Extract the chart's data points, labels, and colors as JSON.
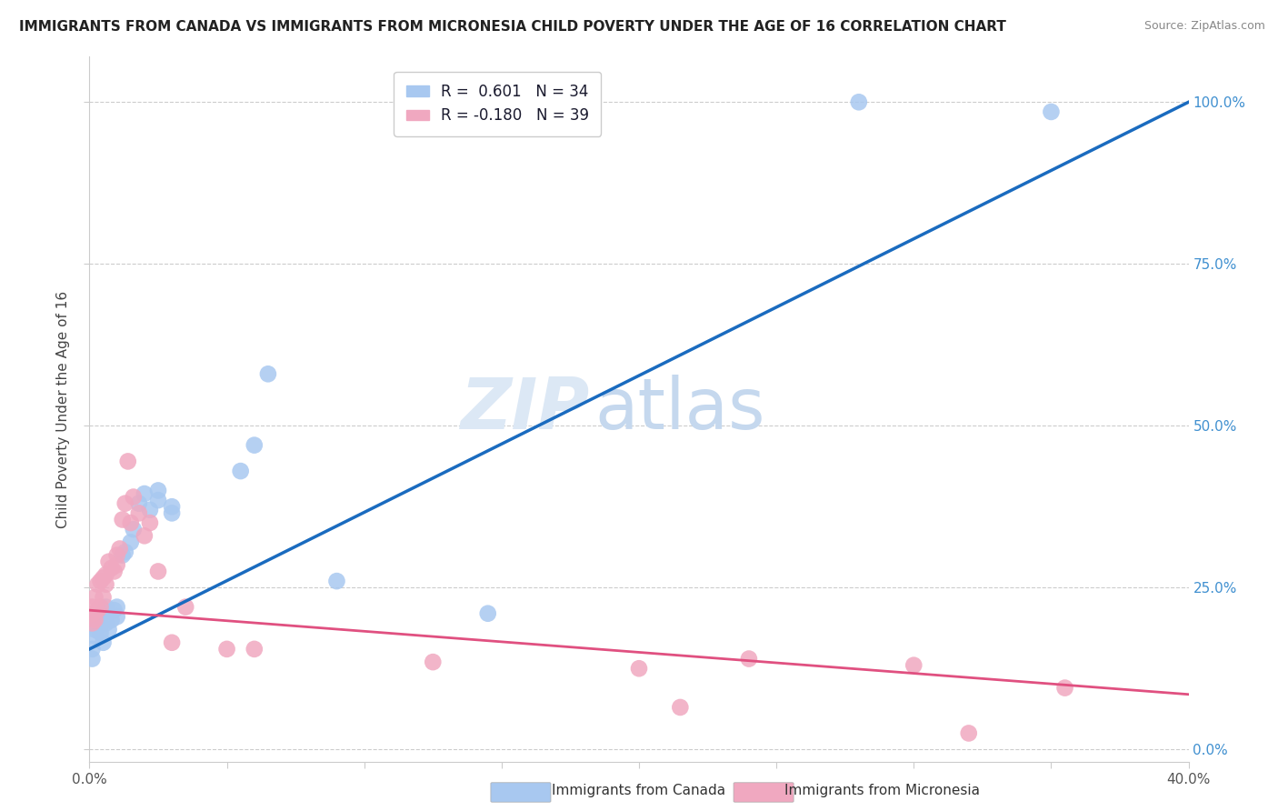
{
  "title": "IMMIGRANTS FROM CANADA VS IMMIGRANTS FROM MICRONESIA CHILD POVERTY UNDER THE AGE OF 16 CORRELATION CHART",
  "source": "Source: ZipAtlas.com",
  "ylabel": "Child Poverty Under the Age of 16",
  "xlabel_canada": "Immigrants from Canada",
  "xlabel_micronesia": "Immigrants from Micronesia",
  "x_min": 0.0,
  "x_max": 0.4,
  "y_min": -0.02,
  "y_max": 1.07,
  "canada_color": "#a8c8f0",
  "micronesia_color": "#f0a8c0",
  "canada_line_color": "#1a6bbf",
  "micronesia_line_color": "#e05080",
  "watermark_zip": "ZIP",
  "watermark_atlas": "atlas",
  "canada_x": [
    0.001,
    0.001,
    0.002,
    0.002,
    0.003,
    0.003,
    0.004,
    0.005,
    0.005,
    0.006,
    0.006,
    0.007,
    0.008,
    0.009,
    0.01,
    0.01,
    0.012,
    0.013,
    0.015,
    0.016,
    0.018,
    0.02,
    0.022,
    0.025,
    0.025,
    0.03,
    0.03,
    0.055,
    0.06,
    0.065,
    0.09,
    0.145,
    0.28,
    0.35
  ],
  "canada_y": [
    0.155,
    0.14,
    0.175,
    0.185,
    0.19,
    0.2,
    0.18,
    0.165,
    0.21,
    0.195,
    0.22,
    0.185,
    0.2,
    0.215,
    0.22,
    0.205,
    0.3,
    0.305,
    0.32,
    0.34,
    0.38,
    0.395,
    0.37,
    0.385,
    0.4,
    0.365,
    0.375,
    0.43,
    0.47,
    0.58,
    0.26,
    0.21,
    1.0,
    0.985
  ],
  "micronesia_x": [
    0.001,
    0.001,
    0.001,
    0.002,
    0.002,
    0.003,
    0.003,
    0.004,
    0.004,
    0.005,
    0.005,
    0.006,
    0.006,
    0.007,
    0.008,
    0.009,
    0.01,
    0.01,
    0.011,
    0.012,
    0.013,
    0.014,
    0.015,
    0.016,
    0.018,
    0.02,
    0.022,
    0.025,
    0.03,
    0.035,
    0.05,
    0.06,
    0.125,
    0.2,
    0.215,
    0.24,
    0.3,
    0.32,
    0.355
  ],
  "micronesia_y": [
    0.195,
    0.21,
    0.22,
    0.2,
    0.235,
    0.215,
    0.255,
    0.22,
    0.26,
    0.235,
    0.265,
    0.255,
    0.27,
    0.29,
    0.28,
    0.275,
    0.285,
    0.3,
    0.31,
    0.355,
    0.38,
    0.445,
    0.35,
    0.39,
    0.365,
    0.33,
    0.35,
    0.275,
    0.165,
    0.22,
    0.155,
    0.155,
    0.135,
    0.125,
    0.065,
    0.14,
    0.13,
    0.025,
    0.095
  ],
  "ytick_labels_right": [
    "0.0%",
    "25.0%",
    "50.0%",
    "75.0%",
    "100.0%"
  ],
  "ytick_values": [
    0.0,
    0.25,
    0.5,
    0.75,
    1.0
  ],
  "xtick_values": [
    0.0,
    0.05,
    0.1,
    0.15,
    0.2,
    0.25,
    0.3,
    0.35,
    0.4
  ],
  "xtick_labels_show": {
    "0.0": "0.0%",
    "0.4": "40.0%"
  }
}
